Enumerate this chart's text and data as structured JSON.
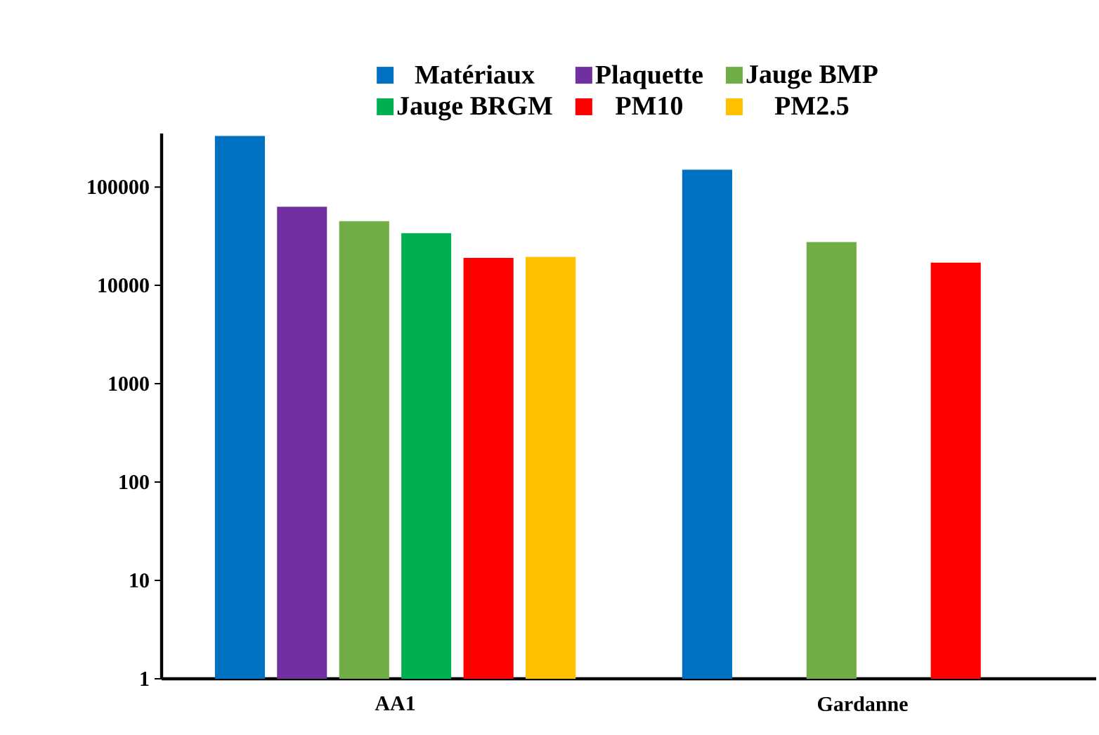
{
  "chart_data": {
    "type": "bar",
    "categories": [
      "AA1",
      "Gardanne"
    ],
    "series": [
      {
        "name": "Matériaux",
        "color": "#0070c0",
        "values": [
          330000,
          150000
        ]
      },
      {
        "name": "Plaquette",
        "color": "#7030a0",
        "values": [
          63000,
          null
        ]
      },
      {
        "name": "Jauge BMP",
        "color": "#70ad47",
        "values": [
          45000,
          27500
        ]
      },
      {
        "name": "Jauge BRGM",
        "color": "#00b050",
        "values": [
          34000,
          null
        ]
      },
      {
        "name": "PM10",
        "color": "#ff0000",
        "values": [
          19000,
          17000
        ]
      },
      {
        "name": "PM2.5",
        "color": "#ffc000",
        "values": [
          19500,
          null
        ]
      }
    ],
    "log": "y",
    "ylim": [
      1,
      350000
    ],
    "yticks": [
      1,
      10,
      100,
      1000,
      10000,
      100000
    ],
    "grid": false,
    "legend": "top"
  }
}
